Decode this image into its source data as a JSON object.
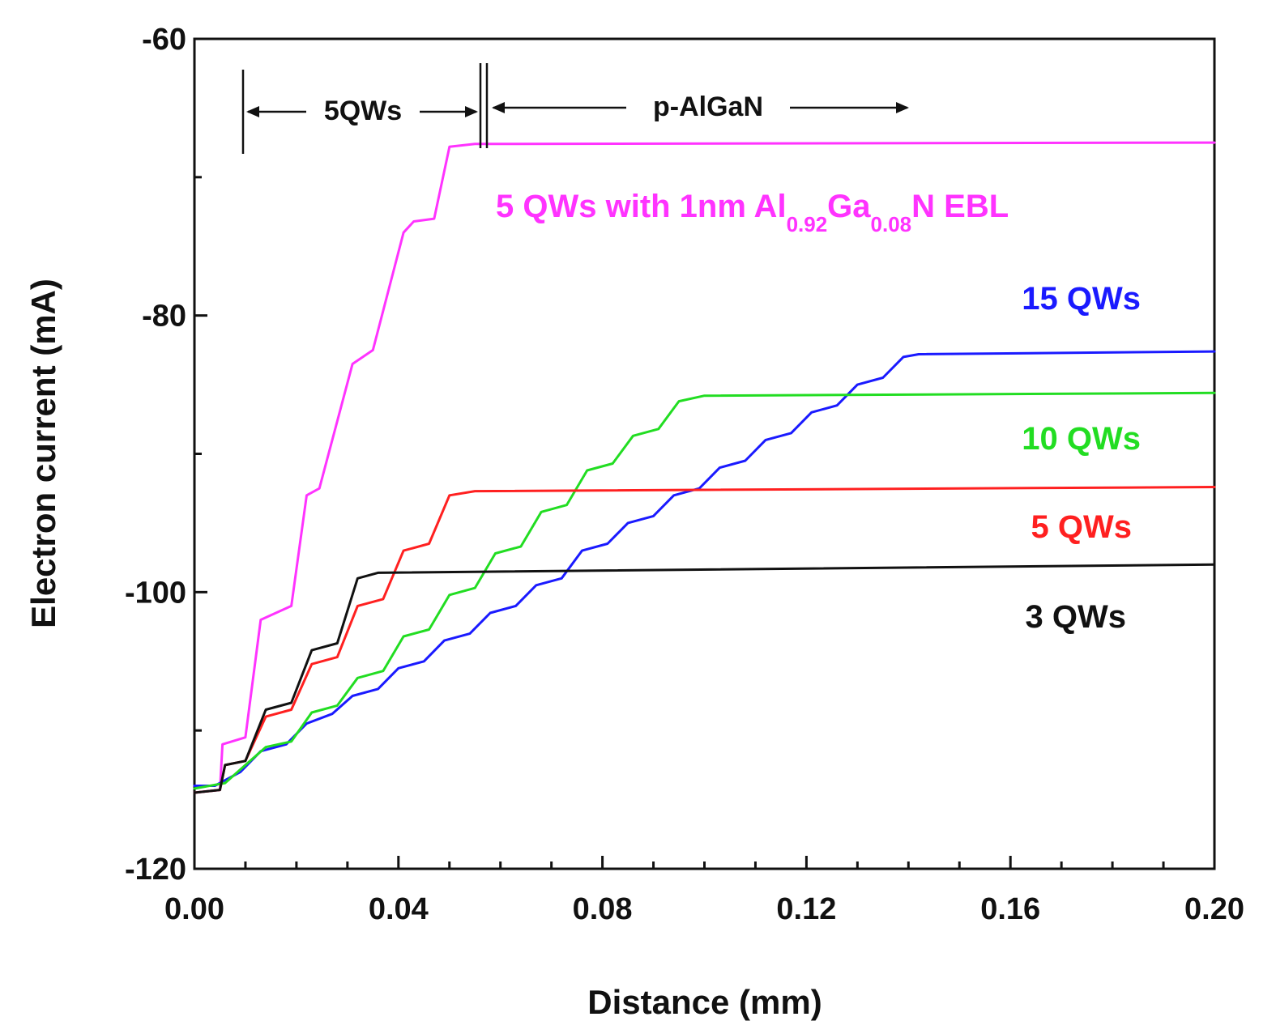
{
  "chart_data": {
    "type": "line",
    "title": "",
    "xlabel": "Distance (mm)",
    "ylabel": "Electron current (mA)",
    "xlim": [
      0.0,
      0.2
    ],
    "ylim": [
      -120,
      -60
    ],
    "xticks": [
      "0.00",
      "0.04",
      "0.08",
      "0.12",
      "0.16",
      "0.20"
    ],
    "xtick_values": [
      0.0,
      0.04,
      0.08,
      0.12,
      0.16,
      0.2
    ],
    "yticks": [
      "-60",
      "-80",
      "-100",
      "-120"
    ],
    "ytick_values": [
      -60,
      -80,
      -100,
      -120
    ],
    "grid": false,
    "annotations": {
      "qw_region": "5QWs",
      "p_region": "p-AlGaN"
    },
    "ebl_label": {
      "main": "5 QWs with 1nm Al",
      "sub1": "0.92",
      "mid": "Ga",
      "sub2": "0.08",
      "tail": "N EBL"
    },
    "series": [
      {
        "name": "5 QWs with 1nm Al0.92Ga0.08N EBL",
        "color": "#ff33ff",
        "points": [
          [
            0.0,
            -114.5
          ],
          [
            0.005,
            -114.3
          ],
          [
            0.0055,
            -111
          ],
          [
            0.01,
            -110.5
          ],
          [
            0.013,
            -102
          ],
          [
            0.019,
            -101
          ],
          [
            0.022,
            -93
          ],
          [
            0.0245,
            -92.5
          ],
          [
            0.031,
            -83.5
          ],
          [
            0.035,
            -82.5
          ],
          [
            0.041,
            -74
          ],
          [
            0.043,
            -73.2
          ],
          [
            0.047,
            -73
          ],
          [
            0.05,
            -67.8
          ],
          [
            0.055,
            -67.6
          ],
          [
            0.2,
            -67.5
          ]
        ]
      },
      {
        "name": "15 QWs",
        "color": "#1a1aff",
        "points": [
          [
            0.0,
            -114
          ],
          [
            0.004,
            -114
          ],
          [
            0.009,
            -113
          ],
          [
            0.013,
            -111.5
          ],
          [
            0.018,
            -111
          ],
          [
            0.022,
            -109.5
          ],
          [
            0.027,
            -108.8
          ],
          [
            0.031,
            -107.5
          ],
          [
            0.036,
            -107
          ],
          [
            0.04,
            -105.5
          ],
          [
            0.045,
            -105
          ],
          [
            0.049,
            -103.5
          ],
          [
            0.054,
            -103
          ],
          [
            0.058,
            -101.5
          ],
          [
            0.063,
            -101
          ],
          [
            0.067,
            -99.5
          ],
          [
            0.072,
            -99
          ],
          [
            0.076,
            -97
          ],
          [
            0.081,
            -96.5
          ],
          [
            0.085,
            -95
          ],
          [
            0.09,
            -94.5
          ],
          [
            0.094,
            -93
          ],
          [
            0.099,
            -92.5
          ],
          [
            0.103,
            -91
          ],
          [
            0.108,
            -90.5
          ],
          [
            0.112,
            -89
          ],
          [
            0.117,
            -88.5
          ],
          [
            0.121,
            -87
          ],
          [
            0.126,
            -86.5
          ],
          [
            0.13,
            -85
          ],
          [
            0.135,
            -84.5
          ],
          [
            0.139,
            -83
          ],
          [
            0.142,
            -82.8
          ],
          [
            0.2,
            -82.6
          ]
        ]
      },
      {
        "name": "10 QWs",
        "color": "#22dd22",
        "points": [
          [
            0.0,
            -114.2
          ],
          [
            0.006,
            -113.8
          ],
          [
            0.01,
            -112.5
          ],
          [
            0.014,
            -111.2
          ],
          [
            0.019,
            -110.8
          ],
          [
            0.023,
            -108.7
          ],
          [
            0.028,
            -108.2
          ],
          [
            0.032,
            -106.2
          ],
          [
            0.037,
            -105.7
          ],
          [
            0.041,
            -103.2
          ],
          [
            0.046,
            -102.7
          ],
          [
            0.05,
            -100.2
          ],
          [
            0.055,
            -99.7
          ],
          [
            0.059,
            -97.2
          ],
          [
            0.064,
            -96.7
          ],
          [
            0.068,
            -94.2
          ],
          [
            0.073,
            -93.7
          ],
          [
            0.077,
            -91.2
          ],
          [
            0.082,
            -90.7
          ],
          [
            0.086,
            -88.7
          ],
          [
            0.091,
            -88.2
          ],
          [
            0.095,
            -86.2
          ],
          [
            0.1,
            -85.8
          ],
          [
            0.2,
            -85.6
          ]
        ]
      },
      {
        "name": "5 QWs",
        "color": "#ff2020",
        "points": [
          [
            0.0,
            -114.5
          ],
          [
            0.005,
            -114.3
          ],
          [
            0.006,
            -112.5
          ],
          [
            0.01,
            -112.2
          ],
          [
            0.014,
            -109
          ],
          [
            0.019,
            -108.5
          ],
          [
            0.023,
            -105.2
          ],
          [
            0.028,
            -104.7
          ],
          [
            0.032,
            -101
          ],
          [
            0.037,
            -100.5
          ],
          [
            0.041,
            -97
          ],
          [
            0.046,
            -96.5
          ],
          [
            0.05,
            -93
          ],
          [
            0.055,
            -92.7
          ],
          [
            0.2,
            -92.4
          ]
        ]
      },
      {
        "name": "3 QWs",
        "color": "#111111",
        "points": [
          [
            0.0,
            -114.5
          ],
          [
            0.005,
            -114.3
          ],
          [
            0.006,
            -112.5
          ],
          [
            0.01,
            -112.2
          ],
          [
            0.014,
            -108.5
          ],
          [
            0.019,
            -108
          ],
          [
            0.023,
            -104.2
          ],
          [
            0.028,
            -103.7
          ],
          [
            0.032,
            -99
          ],
          [
            0.036,
            -98.6
          ],
          [
            0.2,
            -98
          ]
        ]
      }
    ],
    "series_labels": [
      {
        "text": "15 QWs",
        "color": "#1a1aff"
      },
      {
        "text": "10 QWs",
        "color": "#22dd22"
      },
      {
        "text": "5 QWs",
        "color": "#ff2020"
      },
      {
        "text": "3 QWs",
        "color": "#111111"
      }
    ]
  }
}
